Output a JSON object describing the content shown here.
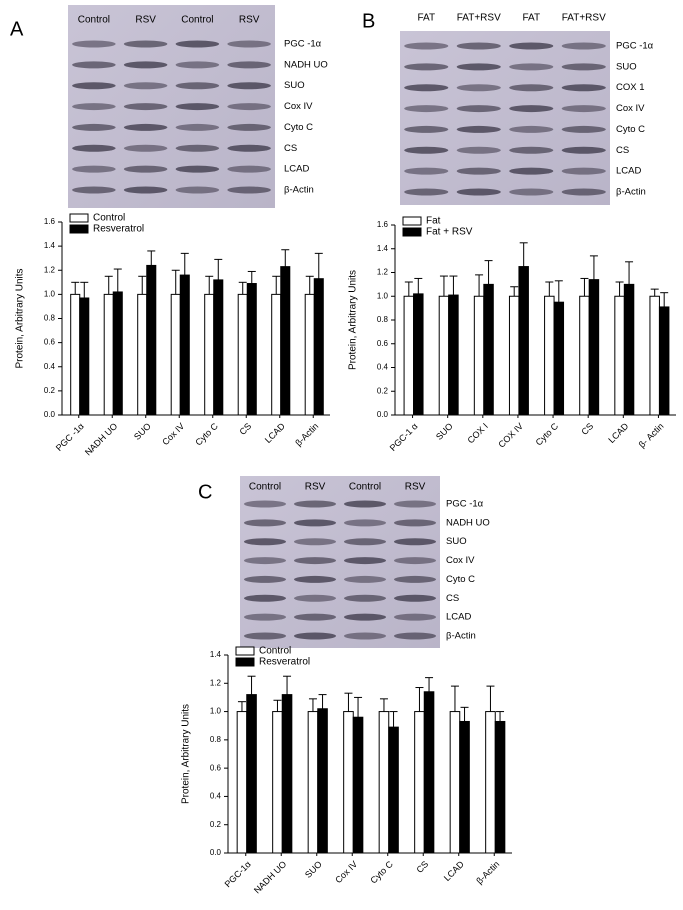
{
  "chart_data": [
    {
      "type": "bar",
      "panel": "A",
      "blot": {
        "columns": [
          "Control",
          "RSV",
          "Control",
          "RSV"
        ],
        "rows": [
          "PGC -1α",
          "NADH UO",
          "SUO",
          "Cox IV",
          "Cyto C",
          "CS",
          "LCAD",
          "β-Actin"
        ]
      },
      "ylabel": "Protein, Arbitrary Units",
      "categories": [
        "PGC -1α",
        "NADH UO",
        "SUO",
        "Cox IV",
        "Cyto C",
        "CS",
        "LCAD",
        "β-Actin"
      ],
      "series": [
        {
          "name": "Control",
          "color": "#ffffff",
          "values": [
            1.0,
            1.0,
            1.0,
            1.0,
            1.0,
            1.0,
            1.0,
            1.0
          ],
          "errors": [
            0.1,
            0.15,
            0.15,
            0.2,
            0.15,
            0.1,
            0.15,
            0.15
          ]
        },
        {
          "name": "Resveratrol",
          "color": "#000000",
          "values": [
            0.97,
            1.02,
            1.24,
            1.16,
            1.12,
            1.09,
            1.23,
            1.13
          ],
          "errors": [
            0.13,
            0.19,
            0.12,
            0.18,
            0.17,
            0.1,
            0.14,
            0.21
          ]
        }
      ],
      "ylim": [
        0,
        1.6
      ],
      "yticks": [
        {
          "value": 0,
          "label": "0.0"
        },
        0.2,
        0.4,
        0.6,
        0.8,
        {
          "value": 1,
          "label": "1.0"
        },
        1.2,
        1.4,
        1.6
      ],
      "legend": "upper left"
    },
    {
      "type": "bar",
      "panel": "B",
      "blot": {
        "columns": [
          "FAT",
          "FAT+RSV",
          "FAT",
          "FAT+RSV"
        ],
        "rows": [
          "PGC -1α",
          "SUO",
          "COX 1",
          "Cox IV",
          "Cyto C",
          "CS",
          "LCAD",
          "β-Actin"
        ]
      },
      "ylabel": "Protein, Arbitrary Units",
      "categories": [
        "PGC-1 α",
        "SUO",
        "COX I",
        "COX IV",
        "Cyto C",
        "CS",
        "LCAD",
        "β- Actin"
      ],
      "series": [
        {
          "name": "Fat",
          "color": "#ffffff",
          "values": [
            1.0,
            1.0,
            1.0,
            1.0,
            1.0,
            1.0,
            1.0,
            1.0
          ],
          "errors": [
            0.12,
            0.17,
            0.18,
            0.08,
            0.12,
            0.15,
            0.12,
            0.06
          ]
        },
        {
          "name": "Fat + RSV",
          "color": "#000000",
          "values": [
            1.02,
            1.01,
            1.1,
            1.25,
            0.95,
            1.14,
            1.1,
            0.91
          ],
          "errors": [
            0.13,
            0.16,
            0.2,
            0.2,
            0.18,
            0.2,
            0.19,
            0.12
          ]
        }
      ],
      "ylim": [
        0,
        1.6
      ],
      "yticks": [
        {
          "value": 0,
          "label": "0.0"
        },
        0.2,
        0.4,
        0.6,
        0.8,
        {
          "value": 1,
          "label": "1.0"
        },
        1.2,
        1.4,
        1.6
      ],
      "legend": "upper left"
    },
    {
      "type": "bar",
      "panel": "C",
      "blot": {
        "columns": [
          "Control",
          "RSV",
          "Control",
          "RSV"
        ],
        "rows": [
          "PGC -1α",
          "NADH UO",
          "SUO",
          "Cox IV",
          "Cyto C",
          "CS",
          "LCAD",
          "β-Actin"
        ]
      },
      "ylabel": "Protein, Arbitrary Units",
      "categories": [
        "PGC-1α",
        "NADH UO",
        "SUO",
        "Cox IV",
        "Cyto C",
        "CS",
        "LCAD",
        "β-Actin"
      ],
      "series": [
        {
          "name": "Control",
          "color": "#ffffff",
          "values": [
            1.0,
            1.0,
            1.0,
            1.0,
            1.0,
            1.0,
            1.0,
            1.0
          ],
          "errors": [
            0.07,
            0.08,
            0.09,
            0.13,
            0.09,
            0.17,
            0.18,
            0.18
          ]
        },
        {
          "name": "Resveratrol",
          "color": "#000000",
          "values": [
            1.12,
            1.12,
            1.02,
            0.96,
            0.89,
            1.14,
            0.93,
            0.93
          ],
          "errors": [
            0.13,
            0.13,
            0.1,
            0.14,
            0.11,
            0.1,
            0.1,
            0.07
          ]
        }
      ],
      "ylim": [
        0,
        1.4
      ],
      "yticks": [
        {
          "value": 0,
          "label": "0.0"
        },
        0.2,
        0.4,
        0.6,
        0.8,
        {
          "value": 1,
          "label": "1.0"
        },
        1.2,
        1.4
      ],
      "legend": "upper left"
    }
  ]
}
